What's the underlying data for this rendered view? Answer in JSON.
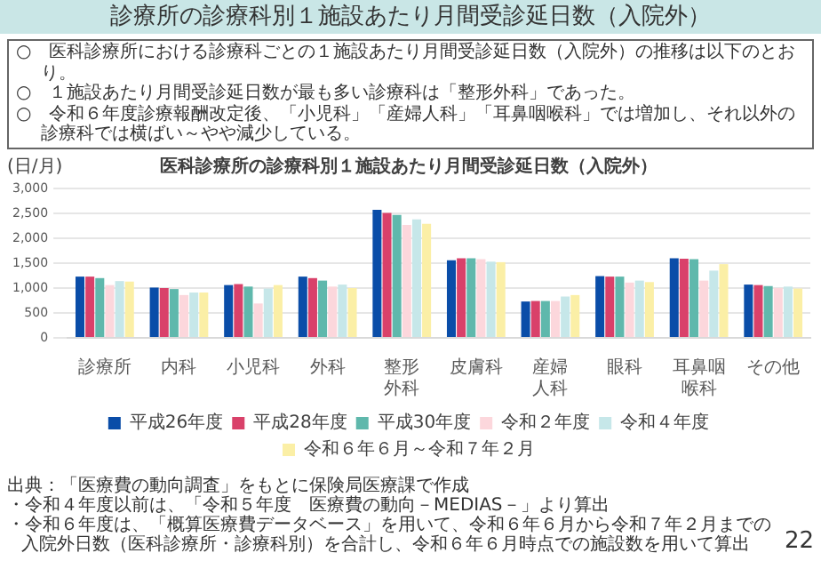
{
  "chart_data": {
    "type": "bar",
    "title": "診療所の診療科別１施設あたり月間受診延日数（入院外）",
    "subtitle": "医科診療所の診療科別１施設あたり月間受診延日数（入院外）",
    "ylabel": "(日/月)",
    "categories": [
      "診療所",
      "内科",
      "小児科",
      "外科",
      "整形外科",
      "皮膚科",
      "産婦人科",
      "眼科",
      "耳鼻咽喉科",
      "その他"
    ],
    "series": [
      {
        "name": "平成26年度",
        "color": "#0a4da8",
        "values": [
          1230,
          1010,
          1060,
          1230,
          2570,
          1560,
          730,
          1240,
          1600,
          1070
        ]
      },
      {
        "name": "平成28年度",
        "color": "#d9416a",
        "values": [
          1230,
          1000,
          1080,
          1200,
          2510,
          1600,
          740,
          1230,
          1590,
          1060
        ]
      },
      {
        "name": "平成30年度",
        "color": "#5fb8ac",
        "values": [
          1200,
          980,
          1030,
          1150,
          2470,
          1600,
          740,
          1230,
          1580,
          1040
        ]
      },
      {
        "name": "令和２年度",
        "color": "#fcd7dc",
        "values": [
          1060,
          860,
          690,
          1030,
          2270,
          1580,
          740,
          1110,
          1150,
          1000
        ]
      },
      {
        "name": "令和４年度",
        "color": "#c6e7e9",
        "values": [
          1140,
          910,
          990,
          1070,
          2380,
          1530,
          830,
          1150,
          1350,
          1030
        ]
      },
      {
        "name": "令和６年６月～令和７年２月",
        "color": "#fbefa6",
        "values": [
          1130,
          910,
          1060,
          1000,
          2290,
          1520,
          860,
          1120,
          1480,
          990
        ]
      }
    ],
    "ylim": [
      0,
      3000
    ],
    "yticks": [
      0,
      500,
      {
        "value": 1000,
        "label": "1,000"
      },
      {
        "value": 1500,
        "label": "1,500"
      },
      {
        "value": 2000,
        "label": "2,000"
      },
      {
        "value": 2500,
        "label": "2,500"
      },
      {
        "value": 3000,
        "label": "3,000"
      }
    ],
    "grid": "y",
    "legend": "bottom",
    "annotations": [
      "○　医科診療所における診療科ごとの１施設あたり月間受診延日数（入院外）の推移は以下のとおり。",
      "○　１施設あたり月間受診延日数が最も多い診療科は「整形外科」であった。",
      "○　令和６年度診療報酬改定後、「小児科」「産婦人科」「耳鼻咽喉科」では増加し、それ以外の診療科では横ばい～やや減少している。",
      "出典：「医療費の動向調査」をもとに保険局医療課で作成",
      "・令和４年度以前は、「令和５年度　医療費の動向－MEDIAS－」より算出",
      "・令和６年度は、「概算医療費データベース」を用いて、令和６年６月から令和７年２月までの入院外日数（医科診療所・診療科別）を合計し、令和６年６月時点での施設数を用いて算出",
      "22"
    ]
  }
}
